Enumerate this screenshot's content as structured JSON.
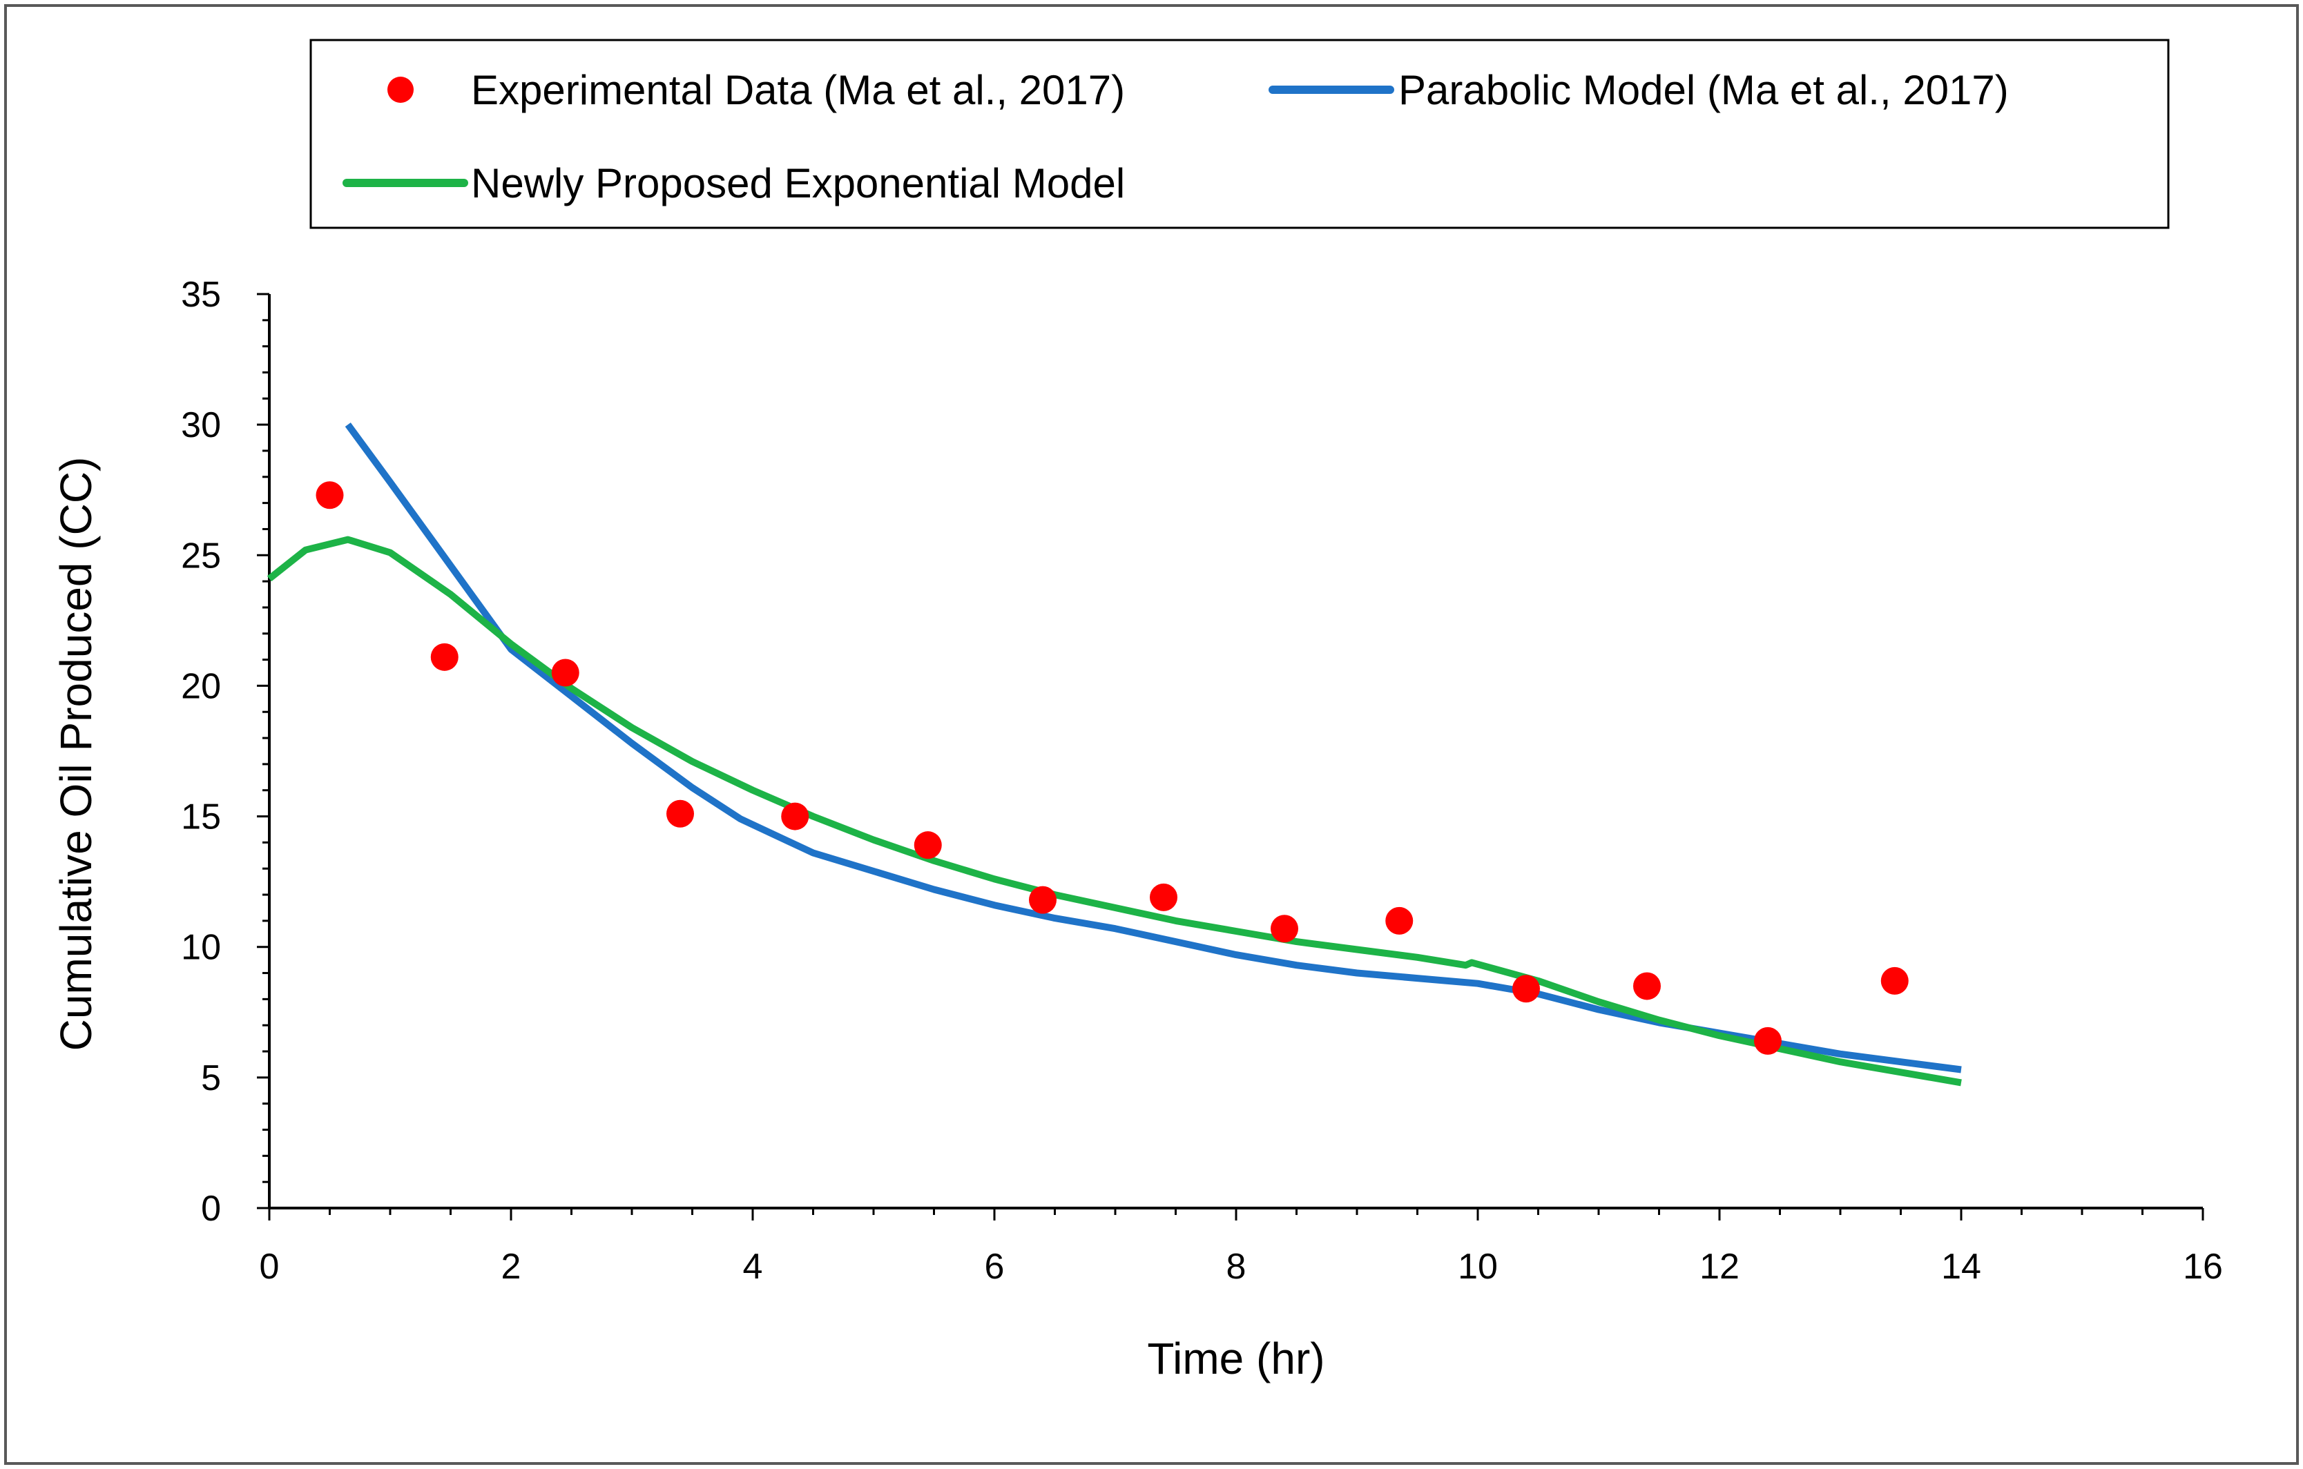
{
  "chart_data": {
    "type": "scatter",
    "title": "",
    "xlabel": "Time (hr)",
    "ylabel": "Cumulative Oil Produced (CC)",
    "xlim": [
      0,
      16
    ],
    "ylim": [
      0,
      35
    ],
    "xticks": [
      0,
      2,
      4,
      6,
      8,
      10,
      12,
      14,
      16
    ],
    "yticks": [
      0,
      5,
      10,
      15,
      20,
      25,
      30,
      35
    ],
    "grid": false,
    "legend_position": "top",
    "series": [
      {
        "name": "Experimental Data (Ma et al., 2017)",
        "kind": "scatter",
        "color": "#ff0000",
        "x": [
          0.5,
          1.45,
          2.45,
          3.4,
          4.35,
          5.45,
          6.4,
          7.4,
          8.4,
          9.35,
          10.4,
          11.4,
          12.4,
          13.45
        ],
        "y": [
          27.3,
          21.1,
          20.5,
          15.1,
          15.0,
          13.9,
          11.8,
          11.9,
          10.7,
          11.0,
          8.4,
          8.5,
          6.4,
          8.7
        ]
      },
      {
        "name": "Parabolic Model (Ma et al., 2017)",
        "kind": "line",
        "color": "#1f73c8",
        "x": [
          0.65,
          1.0,
          1.5,
          2.0,
          2.5,
          3.0,
          3.5,
          3.9,
          4.5,
          5.0,
          5.5,
          6.0,
          6.5,
          7.0,
          7.5,
          8.0,
          8.5,
          9.0,
          9.5,
          10.0,
          10.5,
          11.0,
          11.5,
          12.0,
          12.5,
          13.0,
          13.5,
          14.0
        ],
        "y": [
          30.0,
          27.8,
          24.6,
          21.4,
          19.6,
          17.8,
          16.1,
          14.9,
          13.6,
          12.9,
          12.2,
          11.6,
          11.1,
          10.7,
          10.2,
          9.7,
          9.3,
          9.0,
          8.8,
          8.6,
          8.2,
          7.6,
          7.1,
          6.7,
          6.3,
          5.9,
          5.6,
          5.3
        ]
      },
      {
        "name": "Newly Proposed Exponential Model",
        "kind": "line",
        "color": "#1db347",
        "x": [
          0.0,
          0.3,
          0.65,
          1.0,
          1.5,
          2.0,
          2.5,
          3.0,
          3.5,
          4.0,
          4.5,
          5.0,
          5.5,
          6.0,
          6.5,
          7.0,
          7.5,
          8.0,
          8.5,
          9.0,
          9.5,
          9.9,
          9.95,
          10.5,
          11.0,
          11.5,
          12.0,
          12.5,
          13.0,
          13.5,
          14.0
        ],
        "y": [
          24.1,
          25.2,
          25.6,
          25.1,
          23.5,
          21.6,
          19.9,
          18.4,
          17.1,
          16.0,
          15.0,
          14.1,
          13.3,
          12.6,
          12.0,
          11.5,
          11.0,
          10.6,
          10.2,
          9.9,
          9.6,
          9.3,
          9.4,
          8.7,
          7.9,
          7.2,
          6.6,
          6.1,
          5.6,
          5.2,
          4.8
        ]
      }
    ]
  }
}
